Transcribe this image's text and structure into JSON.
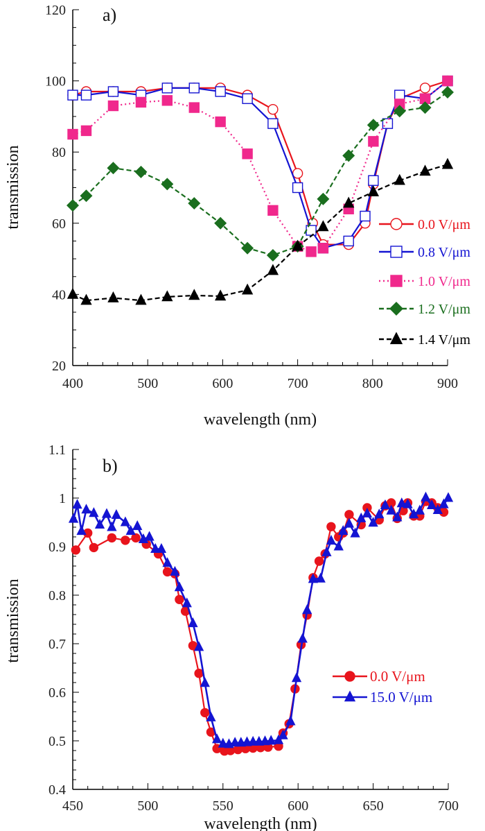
{
  "chart_data": [
    {
      "type": "line",
      "panel_label": "a)",
      "xlabel": "wavelength (nm)",
      "ylabel": "transmission",
      "xlim": [
        400,
        900
      ],
      "ylim": [
        20,
        120
      ],
      "xticks": [
        400,
        500,
        600,
        700,
        800,
        900
      ],
      "yticks": [
        20,
        40,
        60,
        80,
        100,
        120
      ],
      "grid": false,
      "legend_position": "right",
      "series": [
        {
          "name": "0.0 V/μm",
          "color": "#e8141c",
          "marker": "circle-open",
          "dash": "solid",
          "x": [
            400,
            418,
            454,
            491,
            526,
            562,
            597,
            633,
            667,
            700,
            720,
            734,
            768,
            790,
            801,
            820,
            836,
            870,
            900
          ],
          "y": [
            96,
            97,
            97,
            97,
            98,
            98,
            98,
            96,
            92,
            74,
            60,
            54,
            54,
            60,
            71,
            88,
            95,
            98,
            100
          ]
        },
        {
          "name": "0.8 V/μm",
          "color": "#1414d2",
          "marker": "square-open",
          "dash": "solid",
          "x": [
            400,
            418,
            454,
            491,
            526,
            562,
            597,
            633,
            667,
            700,
            718,
            734,
            768,
            790,
            801,
            820,
            836,
            870,
            900
          ],
          "y": [
            96,
            96,
            97,
            96,
            98,
            98,
            97,
            95,
            88,
            70,
            58,
            53,
            55,
            62,
            72,
            88,
            96,
            95,
            100
          ]
        },
        {
          "name": "1.0 V/μm",
          "color": "#f0288c",
          "marker": "square-filled",
          "dash": "dot",
          "x": [
            400,
            418,
            454,
            491,
            526,
            562,
            597,
            633,
            667,
            700,
            718,
            734,
            768,
            801,
            836,
            870,
            900
          ],
          "y": [
            85,
            86,
            93,
            94,
            94.5,
            92.5,
            88.5,
            79.5,
            63.6,
            53.5,
            52,
            53,
            64,
            83,
            93.5,
            95,
            100
          ]
        },
        {
          "name": "1.2 V/μm",
          "color": "#1a6e1e",
          "marker": "diamond-filled",
          "dash": "dash",
          "x": [
            400,
            418,
            454,
            491,
            526,
            562,
            597,
            633,
            667,
            700,
            734,
            768,
            801,
            836,
            870,
            900
          ],
          "y": [
            65,
            67.7,
            75.5,
            74.4,
            71,
            65.6,
            60,
            53,
            51,
            53.5,
            66.8,
            79,
            87.6,
            91.5,
            92.5,
            96.8
          ]
        },
        {
          "name": "1.4 V/μm",
          "color": "#000000",
          "marker": "triangle-filled",
          "dash": "dash",
          "x": [
            400,
            418,
            454,
            491,
            526,
            562,
            597,
            633,
            667,
            700,
            734,
            768,
            801,
            836,
            870,
            900
          ],
          "y": [
            40,
            38.3,
            39,
            38.3,
            39.3,
            39.7,
            39.5,
            41.2,
            46.7,
            53.5,
            59,
            65.6,
            68.8,
            72,
            74.6,
            76.5
          ]
        }
      ]
    },
    {
      "type": "line",
      "panel_label": "b)",
      "xlabel": "wavelength (nm)",
      "ylabel": "transmission",
      "xlim": [
        450,
        700
      ],
      "ylim": [
        0.4,
        1.1
      ],
      "xticks": [
        450,
        500,
        550,
        600,
        650,
        700
      ],
      "yticks": [
        "0.4",
        "0.5",
        "0.6",
        "0.7",
        "0.8",
        "0.9",
        "1",
        "1.1"
      ],
      "grid": false,
      "legend_position": "right",
      "series": [
        {
          "name": "0.0 V/μm",
          "color": "#e8141c",
          "marker": "circle-filled",
          "dash": "solid",
          "x": [
            452,
            460,
            464,
            476,
            485,
            492,
            499,
            507,
            513,
            518,
            521,
            525,
            530,
            534,
            538,
            542,
            546,
            551,
            555,
            560,
            565,
            570,
            575,
            580,
            587,
            590,
            594,
            598,
            602,
            606,
            610,
            614,
            618,
            622,
            627,
            630,
            634,
            642,
            646,
            654,
            658,
            662,
            666,
            670,
            673,
            677,
            681,
            685,
            689,
            693,
            697
          ],
          "y": [
            0.893,
            0.928,
            0.898,
            0.918,
            0.913,
            0.918,
            0.905,
            0.885,
            0.848,
            0.844,
            0.791,
            0.767,
            0.696,
            0.639,
            0.558,
            0.518,
            0.484,
            0.479,
            0.48,
            0.482,
            0.484,
            0.485,
            0.486,
            0.487,
            0.489,
            0.516,
            0.535,
            0.607,
            0.698,
            0.759,
            0.836,
            0.87,
            0.885,
            0.941,
            0.92,
            0.928,
            0.966,
            0.945,
            0.98,
            0.955,
            0.984,
            0.99,
            0.958,
            0.974,
            0.99,
            0.963,
            0.963,
            0.993,
            0.99,
            0.98,
            0.971
          ]
        },
        {
          "name": "15.0 V/μm",
          "color": "#1414d2",
          "marker": "triangle-filled",
          "dash": "solid",
          "x": [
            450.5,
            453,
            455.8,
            459,
            464,
            468,
            472.6,
            476,
            479,
            485,
            488.6,
            493,
            497,
            501,
            505,
            509,
            513,
            518,
            521,
            526,
            530,
            534,
            538,
            542,
            546,
            550,
            554,
            558,
            562,
            566,
            570,
            574,
            578,
            582,
            587,
            590,
            595,
            599,
            603,
            606,
            610,
            615,
            619,
            622,
            627,
            630,
            634,
            638,
            642,
            646,
            650,
            654,
            658,
            662,
            666,
            669,
            673,
            677,
            681,
            685,
            689,
            693,
            697,
            700
          ],
          "y": [
            0.957,
            0.986,
            0.932,
            0.976,
            0.969,
            0.945,
            0.967,
            0.94,
            0.965,
            0.95,
            0.932,
            0.942,
            0.915,
            0.92,
            0.895,
            0.895,
            0.866,
            0.848,
            0.816,
            0.783,
            0.742,
            0.693,
            0.619,
            0.548,
            0.503,
            0.494,
            0.493,
            0.496,
            0.496,
            0.497,
            0.498,
            0.498,
            0.499,
            0.5,
            0.501,
            0.511,
            0.54,
            0.629,
            0.71,
            0.769,
            0.833,
            0.834,
            0.888,
            0.912,
            0.9,
            0.932,
            0.947,
            0.927,
            0.958,
            0.968,
            0.949,
            0.966,
            0.985,
            0.974,
            0.96,
            0.989,
            0.987,
            0.966,
            0.974,
            1.001,
            0.985,
            0.975,
            0.987,
            1.0
          ]
        }
      ]
    }
  ]
}
